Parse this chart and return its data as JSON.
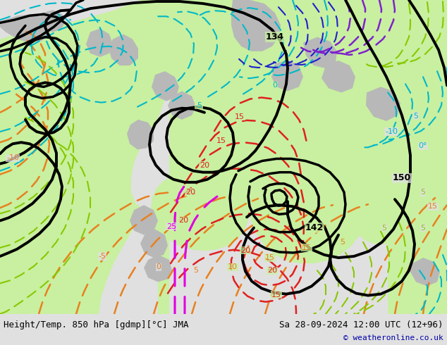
{
  "title_left": "Height/Temp. 850 hPa [gdmp][°C] JMA",
  "title_right": "Sa 28-09-2024 12:00 UTC (12+96)",
  "copyright": "© weatheronline.co.uk",
  "bg_color": "#e0e0e0",
  "green_fill": "#c8f0a0",
  "gray_land": "#b8b8b8",
  "bottom_bar_color": "#f0f0f0",
  "orange": "#e88020",
  "cyan": "#00b8c8",
  "lime": "#88c800",
  "red": "#e02020",
  "magenta": "#e000e0",
  "blue": "#2020cc",
  "purple": "#8020cc",
  "black": "#000000"
}
